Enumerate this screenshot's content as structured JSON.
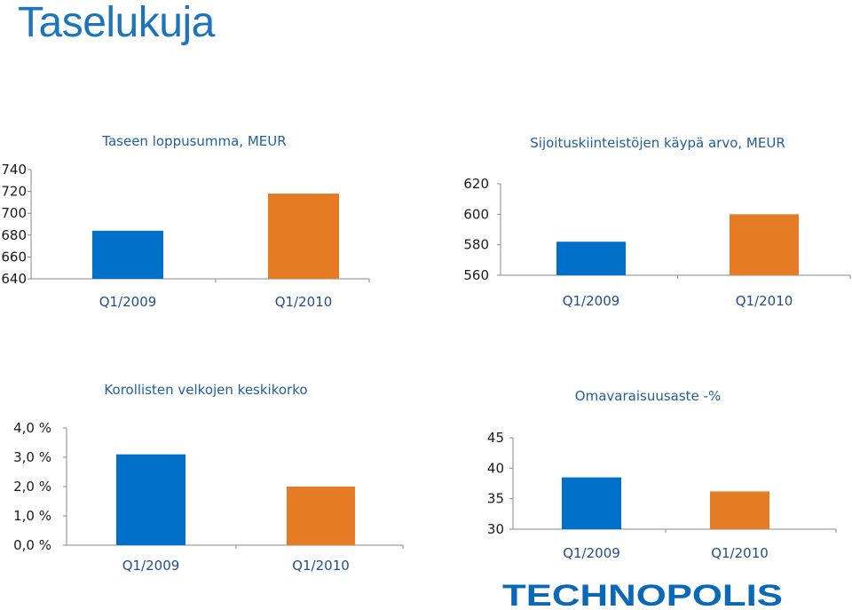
{
  "page": {
    "title": "Taselukuja"
  },
  "colors": {
    "blue": "#0070c8",
    "orange": "#e57b25",
    "title_blue": "#1c75bc",
    "chart_title": "#1f5f9e",
    "logo": "#0a68b8"
  },
  "logo": {
    "text": "TECHNOPOLIS"
  },
  "chart_data": [
    {
      "type": "bar",
      "title": "Taseen loppusumma, MEUR",
      "categories": [
        "Q1/2009",
        "Q1/2010"
      ],
      "values": [
        684,
        718
      ],
      "ylim": [
        640,
        740
      ],
      "yticks": [
        "640",
        "660",
        "680",
        "700",
        "720",
        "740"
      ],
      "grid": false
    },
    {
      "type": "bar",
      "title": "Sijoituskiinteistöjen käypä arvo, MEUR",
      "categories": [
        "Q1/2009",
        "Q1/2010"
      ],
      "values": [
        582,
        600
      ],
      "ylim": [
        560,
        620
      ],
      "yticks": [
        "560",
        "580",
        "600",
        "620"
      ],
      "grid": false
    },
    {
      "type": "bar",
      "title": "Korollisten velkojen keskikorko",
      "categories": [
        "Q1/2009",
        "Q1/2010"
      ],
      "values": [
        3.1,
        2.0
      ],
      "ylim": [
        0,
        4
      ],
      "yticks": [
        "0,0 %",
        "1,0 %",
        "2,0 %",
        "3,0 %",
        "4,0 %"
      ],
      "grid": false
    },
    {
      "type": "bar",
      "title": "Omavaraisuusaste -%",
      "categories": [
        "Q1/2009",
        "Q1/2010"
      ],
      "values": [
        38.5,
        36.2
      ],
      "ylim": [
        30,
        45
      ],
      "yticks": [
        "30",
        "35",
        "40",
        "45"
      ],
      "grid": false
    }
  ]
}
